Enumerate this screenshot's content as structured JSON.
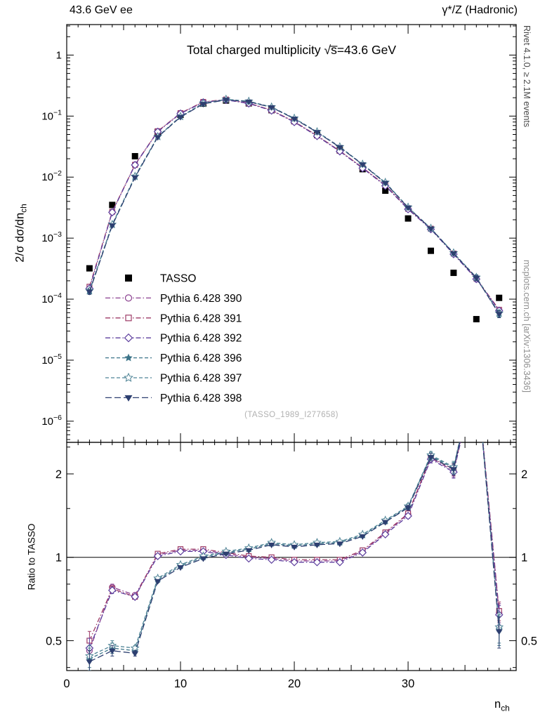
{
  "header": {
    "left": "43.6 GeV ee",
    "right": "γ*/Z (Hadronic)"
  },
  "title": "Total charged multiplicity √s̅=43.6 GeV",
  "watermark": "(TASSO_1989_I277658)",
  "side_notes": {
    "rivet": "Rivet 4.1.0, ≥ 2.1M events",
    "mcplots": "mcplots.cern.ch [arXiv:1306.3436]"
  },
  "axis_labels": {
    "y_top_main": "2/σ  dσ/dn",
    "y_top_sub": "ch",
    "y_ratio": "Ratio to TASSO",
    "x_main": "n",
    "x_sub": "ch"
  },
  "chart_data": {
    "type": "line",
    "title": "Total charged multiplicity √s̅=43.6 GeV",
    "xlabel": "n_ch",
    "ylabel": "2/σ dσ/dn_ch",
    "x": [
      2,
      4,
      6,
      8,
      10,
      12,
      14,
      16,
      18,
      20,
      22,
      24,
      26,
      28,
      30,
      32,
      34,
      36,
      38
    ],
    "xlim": [
      0,
      39.5
    ],
    "x_ticks": [
      0,
      10,
      20,
      30
    ],
    "top_panel": {
      "yscale": "log",
      "ylim": [
        4.5e-07,
        3.16
      ],
      "ytick_exponents": [
        0,
        -1,
        -2,
        -3,
        -4,
        -5,
        -6
      ]
    },
    "ratio_panel": {
      "yscale": "log",
      "ylim": [
        0.39,
        2.6
      ],
      "yticks": [
        0.5,
        1,
        2
      ],
      "yticks_minor": [
        0.4,
        0.6,
        0.7,
        0.8,
        0.9,
        1.5,
        2.5
      ],
      "ref_line": 1,
      "ylabel": "Ratio to TASSO"
    },
    "series": [
      {
        "name": "TASSO",
        "role": "data",
        "color": "#000000",
        "marker": "square-filled",
        "linestyle": "none",
        "values": [
          0.00032,
          0.0035,
          0.022,
          0.055,
          0.105,
          0.16,
          0.18,
          0.162,
          0.125,
          0.083,
          0.049,
          0.0275,
          0.0135,
          0.006,
          0.0021,
          0.00062,
          0.00027,
          4.7e-05,
          0.000105
        ]
      },
      {
        "name": "Pythia 6.428 390",
        "color": "#8a3f8f",
        "marker": "circle-open",
        "linestyle": "dashdot",
        "values": [
          0.00015,
          0.0027,
          0.016,
          0.056,
          0.111,
          0.169,
          0.185,
          0.162,
          0.124,
          0.0805,
          0.0475,
          0.0267,
          0.0142,
          0.0073,
          0.003,
          0.00141,
          0.00055,
          0.000215,
          6.6e-05
        ],
        "ratio": [
          0.46,
          0.78,
          0.73,
          1.02,
          1.06,
          1.06,
          1.03,
          1.0,
          0.99,
          0.97,
          0.97,
          0.97,
          1.05,
          1.22,
          1.43,
          2.28,
          2.05,
          4.6,
          0.63
        ],
        "ratio_err": [
          0.04,
          0.02,
          0.01,
          0.01,
          0.01,
          0.01,
          0.01,
          0.01,
          0.01,
          0.01,
          0.01,
          0.01,
          0.01,
          0.02,
          0.03,
          0.07,
          0.1,
          0.45,
          0.05
        ]
      },
      {
        "name": "Pythia 6.428 391",
        "color": "#9d3a66",
        "marker": "square-open",
        "linestyle": "dashdot",
        "values": [
          0.00016,
          0.00271,
          0.0159,
          0.0566,
          0.112,
          0.171,
          0.187,
          0.163,
          0.125,
          0.0813,
          0.048,
          0.0269,
          0.0143,
          0.0074,
          0.00302,
          0.00143,
          0.00056,
          0.000218,
          6.7e-05
        ],
        "ratio": [
          0.5,
          0.77,
          0.72,
          1.03,
          1.07,
          1.07,
          1.04,
          1.01,
          1.0,
          0.98,
          0.98,
          0.98,
          1.06,
          1.23,
          1.44,
          2.3,
          2.07,
          4.65,
          0.64
        ],
        "ratio_err": [
          0.04,
          0.02,
          0.01,
          0.01,
          0.01,
          0.01,
          0.01,
          0.01,
          0.01,
          0.01,
          0.01,
          0.01,
          0.01,
          0.02,
          0.03,
          0.07,
          0.1,
          0.45,
          0.05
        ]
      },
      {
        "name": "Pythia 6.428 392",
        "color": "#5e3f9e",
        "marker": "diamond-open",
        "linestyle": "dashdot",
        "values": [
          0.00015,
          0.00265,
          0.0158,
          0.0555,
          0.11,
          0.168,
          0.184,
          0.161,
          0.123,
          0.0797,
          0.047,
          0.0264,
          0.014,
          0.0072,
          0.00297,
          0.0014,
          0.000545,
          0.000213,
          6.5e-05
        ],
        "ratio": [
          0.47,
          0.76,
          0.72,
          1.01,
          1.05,
          1.05,
          1.02,
          0.99,
          0.98,
          0.96,
          0.96,
          0.96,
          1.04,
          1.21,
          1.41,
          2.26,
          2.03,
          4.55,
          0.62
        ],
        "ratio_err": [
          0.04,
          0.02,
          0.01,
          0.01,
          0.01,
          0.01,
          0.01,
          0.01,
          0.01,
          0.01,
          0.01,
          0.01,
          0.01,
          0.02,
          0.03,
          0.07,
          0.1,
          0.45,
          0.05
        ]
      },
      {
        "name": "Pythia 6.428 396",
        "color": "#3c7489",
        "marker": "star-filled",
        "linestyle": "dashed",
        "values": [
          0.000135,
          0.00165,
          0.0101,
          0.0457,
          0.0977,
          0.16,
          0.187,
          0.173,
          0.14,
          0.0913,
          0.0549,
          0.0311,
          0.0162,
          0.0081,
          0.00319,
          0.00144,
          0.000567,
          0.000226,
          5.8e-05
        ],
        "ratio": [
          0.43,
          0.47,
          0.46,
          0.83,
          0.93,
          1.0,
          1.04,
          1.07,
          1.12,
          1.1,
          1.12,
          1.13,
          1.2,
          1.35,
          1.52,
          2.32,
          2.1,
          4.8,
          0.55
        ],
        "ratio_err": [
          0.04,
          0.02,
          0.01,
          0.01,
          0.01,
          0.01,
          0.01,
          0.01,
          0.01,
          0.01,
          0.01,
          0.01,
          0.01,
          0.02,
          0.03,
          0.07,
          0.1,
          0.5,
          0.07
        ]
      },
      {
        "name": "Pythia 6.428 397",
        "color": "#4f8496",
        "marker": "star-open",
        "linestyle": "dashed",
        "values": [
          0.000138,
          0.00168,
          0.0103,
          0.0462,
          0.0987,
          0.162,
          0.189,
          0.175,
          0.141,
          0.0922,
          0.0554,
          0.0314,
          0.0163,
          0.0082,
          0.00321,
          0.00145,
          0.000572,
          0.000228,
          5.9e-05
        ],
        "ratio": [
          0.44,
          0.48,
          0.47,
          0.84,
          0.94,
          1.01,
          1.05,
          1.08,
          1.13,
          1.11,
          1.13,
          1.14,
          1.21,
          1.36,
          1.53,
          2.34,
          2.12,
          4.85,
          0.56
        ],
        "ratio_err": [
          0.04,
          0.02,
          0.01,
          0.01,
          0.01,
          0.01,
          0.01,
          0.01,
          0.01,
          0.01,
          0.01,
          0.01,
          0.01,
          0.02,
          0.03,
          0.07,
          0.1,
          0.5,
          0.07
        ]
      },
      {
        "name": "Pythia 6.428 398",
        "color": "#2d3f70",
        "marker": "triangle-down-filled",
        "linestyle": "longdash",
        "values": [
          0.000132,
          0.00161,
          0.0099,
          0.0451,
          0.0966,
          0.158,
          0.185,
          0.172,
          0.139,
          0.0905,
          0.0544,
          0.0308,
          0.0161,
          0.008,
          0.00317,
          0.00143,
          0.000562,
          0.000223,
          5.7e-05
        ],
        "ratio": [
          0.42,
          0.46,
          0.45,
          0.82,
          0.92,
          0.99,
          1.03,
          1.06,
          1.11,
          1.09,
          1.11,
          1.12,
          1.19,
          1.34,
          1.51,
          2.3,
          2.08,
          4.75,
          0.54
        ],
        "ratio_err": [
          0.04,
          0.02,
          0.01,
          0.01,
          0.01,
          0.01,
          0.01,
          0.01,
          0.01,
          0.01,
          0.01,
          0.01,
          0.01,
          0.02,
          0.03,
          0.07,
          0.1,
          0.5,
          0.07
        ]
      }
    ]
  }
}
